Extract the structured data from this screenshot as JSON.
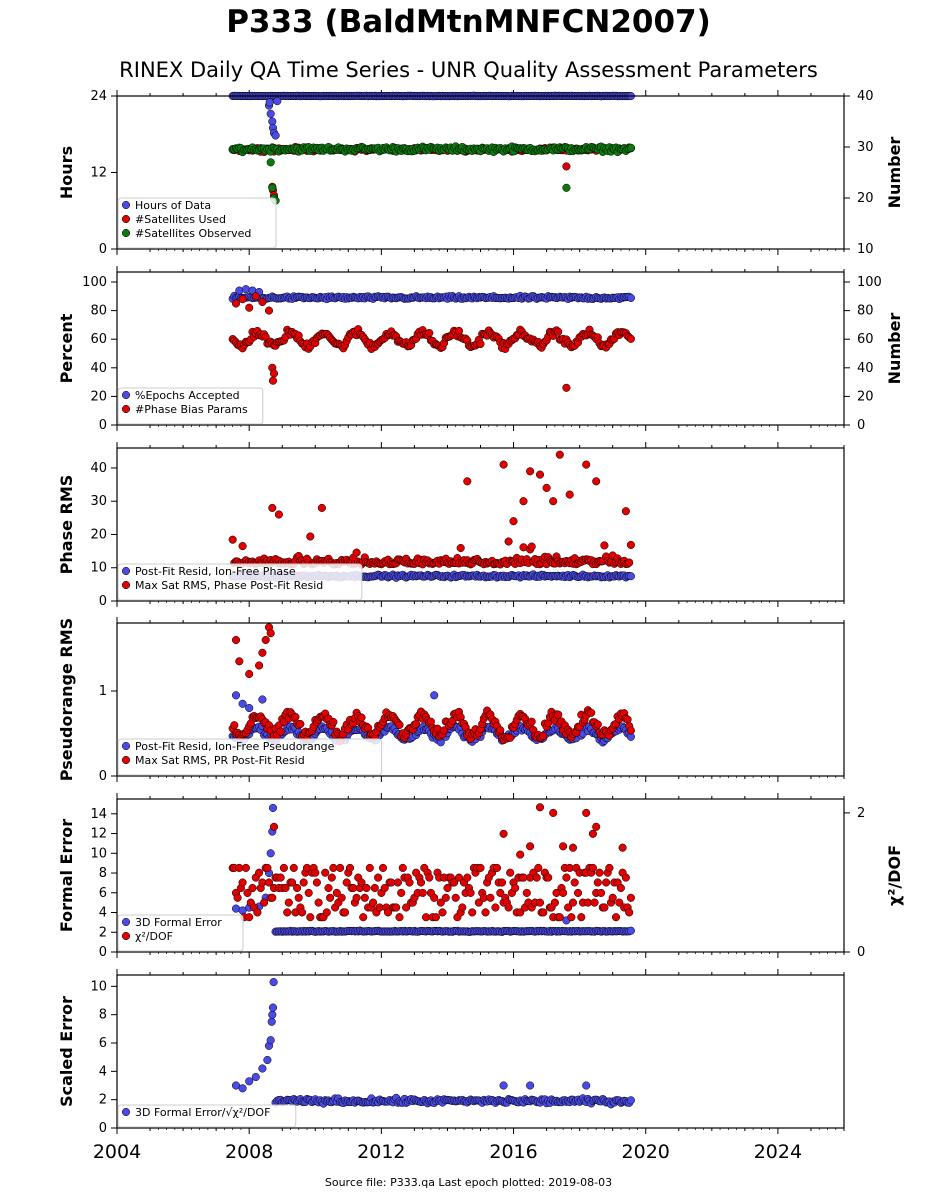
{
  "header": {
    "title": "P333 (BaldMtnMNFCN2007)",
    "subtitle": "RINEX Daily QA Time Series - UNR Quality Assessment Parameters"
  },
  "footer": {
    "text": "Source file: P333.qa Last epoch plotted: 2019-08-03"
  },
  "colors": {
    "blue": "#4a4ae6",
    "red": "#e00000",
    "green": "#0a7a0a",
    "edge": "#000000"
  },
  "chart_data": [
    {
      "type": "scatter",
      "ylabel": "Hours",
      "ylabel_right": "Number",
      "xlim": [
        2004,
        2026
      ],
      "ylim": [
        0,
        24
      ],
      "yticks": [
        0,
        12,
        24
      ],
      "ylim_right": [
        10,
        40
      ],
      "yticks_right": [
        10,
        20,
        30,
        40
      ],
      "legend": "lower-left",
      "series": [
        {
          "name": "Hours of Data",
          "color": "blue",
          "axis": "left",
          "mode": "const",
          "start": 2007.5,
          "end": 2019.55,
          "base": 24.0,
          "noise": 0.05,
          "extra": [
            [
              2008.6,
              22.5
            ],
            [
              2008.65,
              21.2
            ],
            [
              2008.7,
              20.0
            ],
            [
              2008.72,
              19.0
            ],
            [
              2008.75,
              18.2
            ],
            [
              2008.8,
              17.8
            ],
            [
              2008.62,
              23.0
            ],
            [
              2008.85,
              23.2
            ]
          ]
        },
        {
          "name": "#Satellites Used",
          "color": "red",
          "axis": "right",
          "mode": "const",
          "start": 2007.5,
          "end": 2019.55,
          "base": 29.5,
          "noise": 0.5,
          "extra": [
            [
              2008.7,
              22.2
            ],
            [
              2008.72,
              21.5
            ],
            [
              2008.75,
              20.5
            ],
            [
              2009.4,
              30.0
            ],
            [
              2017.6,
              26.2
            ]
          ]
        },
        {
          "name": "#Satellites Observed",
          "color": "green",
          "axis": "right",
          "mode": "const",
          "start": 2007.5,
          "end": 2019.55,
          "base": 29.6,
          "noise": 0.7,
          "extra": [
            [
              2008.65,
              27.0
            ],
            [
              2008.7,
              22.0
            ],
            [
              2008.75,
              20.0
            ],
            [
              2008.8,
              19.5
            ],
            [
              2017.6,
              22.0
            ]
          ]
        }
      ]
    },
    {
      "type": "scatter",
      "ylabel": "Percent",
      "ylabel_right": "Number",
      "xlim": [
        2004,
        2026
      ],
      "ylim": [
        0,
        107
      ],
      "yticks": [
        0,
        20,
        40,
        60,
        80,
        100
      ],
      "ylim_right": [
        0,
        107
      ],
      "yticks_right": [
        0,
        20,
        40,
        60,
        80,
        100
      ],
      "legend": "lower-left",
      "series": [
        {
          "name": "%Epochs Accepted",
          "color": "blue",
          "axis": "left",
          "mode": "const",
          "start": 2007.5,
          "end": 2019.55,
          "base": 89,
          "noise": 1.5,
          "extra": [
            [
              2007.7,
              94
            ],
            [
              2007.9,
              95
            ],
            [
              2008.1,
              94
            ],
            [
              2008.3,
              93
            ]
          ]
        },
        {
          "name": "#Phase Bias Params",
          "color": "red",
          "axis": "right",
          "mode": "seasonal",
          "start": 2007.5,
          "end": 2019.55,
          "base": 60,
          "noise": 4,
          "extra": [
            [
              2007.6,
              85
            ],
            [
              2007.8,
              88
            ],
            [
              2008.0,
              82
            ],
            [
              2008.2,
              90
            ],
            [
              2008.4,
              86
            ],
            [
              2008.6,
              80
            ],
            [
              2008.7,
              40
            ],
            [
              2008.75,
              36
            ],
            [
              2008.72,
              31
            ],
            [
              2017.6,
              26
            ]
          ]
        }
      ]
    },
    {
      "type": "scatter",
      "ylabel": "Phase RMS",
      "xlim": [
        2004,
        2026
      ],
      "ylim": [
        0,
        46
      ],
      "yticks": [
        0,
        10,
        20,
        30,
        40
      ],
      "legend": "lower-left",
      "series": [
        {
          "name": "Post-Fit Resid, Ion-Free Phase",
          "color": "blue",
          "axis": "left",
          "mode": "const",
          "start": 2007.5,
          "end": 2019.55,
          "base": 7.5,
          "noise": 0.6,
          "extra": []
        },
        {
          "name": "Max Sat RMS, Phase Post-Fit Resid",
          "color": "red",
          "axis": "left",
          "mode": "spiky",
          "start": 2007.5,
          "end": 2019.55,
          "base": 11,
          "noise": 3,
          "extra": [
            [
              2008.7,
              28
            ],
            [
              2008.9,
              26
            ],
            [
              2010.2,
              28
            ],
            [
              2014.6,
              36
            ],
            [
              2015.7,
              41
            ],
            [
              2016.0,
              24
            ],
            [
              2016.3,
              30
            ],
            [
              2016.5,
              39
            ],
            [
              2016.8,
              38
            ],
            [
              2017.0,
              34
            ],
            [
              2017.2,
              30
            ],
            [
              2017.4,
              44
            ],
            [
              2017.7,
              32
            ],
            [
              2018.2,
              41
            ],
            [
              2018.5,
              36
            ],
            [
              2019.4,
              27
            ]
          ]
        }
      ]
    },
    {
      "type": "scatter",
      "ylabel": "Pseudorange RMS",
      "xlim": [
        2004,
        2026
      ],
      "ylim": [
        0,
        1.8
      ],
      "yticks": [
        0,
        1
      ],
      "legend": "lower-left",
      "series": [
        {
          "name": "Post-Fit Resid, Ion-Free Pseudorange",
          "color": "blue",
          "axis": "left",
          "mode": "seasonal",
          "start": 2007.5,
          "end": 2019.55,
          "base": 0.5,
          "noise": 0.06,
          "extra": [
            [
              2007.6,
              0.95
            ],
            [
              2007.8,
              0.85
            ],
            [
              2008.0,
              0.8
            ],
            [
              2008.4,
              0.9
            ],
            [
              2013.6,
              0.95
            ]
          ]
        },
        {
          "name": "Max Sat RMS, PR Post-Fit Resid",
          "color": "red",
          "axis": "left",
          "mode": "seasonal",
          "start": 2007.5,
          "end": 2019.55,
          "base": 0.6,
          "noise": 0.1,
          "extra": [
            [
              2007.6,
              1.6
            ],
            [
              2007.7,
              1.35
            ],
            [
              2008.0,
              1.2
            ],
            [
              2008.3,
              1.3
            ],
            [
              2008.5,
              1.6
            ],
            [
              2008.6,
              1.75
            ],
            [
              2008.65,
              1.68
            ],
            [
              2008.4,
              1.45
            ]
          ]
        }
      ]
    },
    {
      "type": "scatter",
      "ylabel": "Formal Error",
      "ylabel_right": "χ²/DOF",
      "xlim": [
        2004,
        2026
      ],
      "ylim": [
        0,
        15.5
      ],
      "yticks": [
        0,
        2,
        4,
        6,
        8,
        10,
        12,
        14
      ],
      "ylim_right": [
        0,
        2.2
      ],
      "yticks_right": [
        0,
        2
      ],
      "legend": "lower-left",
      "series": [
        {
          "name": "3D Formal Error",
          "color": "blue",
          "axis": "left",
          "mode": "const",
          "start": 2008.8,
          "end": 2019.55,
          "base": 2.1,
          "noise": 0.08,
          "extra": [
            [
              2007.6,
              4.4
            ],
            [
              2007.8,
              4.2
            ],
            [
              2008.0,
              4.5
            ],
            [
              2008.3,
              4.6
            ],
            [
              2008.5,
              5.5
            ],
            [
              2008.6,
              8.0
            ],
            [
              2008.65,
              10.0
            ],
            [
              2008.7,
              12.2
            ],
            [
              2008.72,
              14.6
            ],
            [
              2017.6,
              3.2
            ]
          ]
        },
        {
          "name": "χ²/DOF",
          "color": "red",
          "axis": "right",
          "mode": "quant",
          "start": 2007.5,
          "end": 2019.55,
          "base": 0.78,
          "noise": 0.18,
          "extra": [
            [
              2008.75,
              1.8
            ],
            [
              2015.7,
              1.7
            ],
            [
              2016.2,
              1.4
            ],
            [
              2016.5,
              1.52
            ],
            [
              2016.8,
              2.08
            ],
            [
              2017.2,
              2.0
            ],
            [
              2017.5,
              1.52
            ],
            [
              2017.8,
              1.5
            ],
            [
              2018.2,
              2.0
            ],
            [
              2018.4,
              1.7
            ],
            [
              2018.5,
              1.8
            ],
            [
              2019.3,
              1.5
            ]
          ]
        }
      ]
    },
    {
      "type": "scatter",
      "ylabel": "Scaled Error",
      "xlim": [
        2004,
        2026
      ],
      "ylim": [
        0,
        10.8
      ],
      "yticks": [
        0,
        2,
        4,
        6,
        8,
        10
      ],
      "xticks": [
        2004,
        2008,
        2012,
        2016,
        2020,
        2024
      ],
      "legend": "lower-left",
      "series": [
        {
          "name": "3D Formal Error/√χ²/DOF",
          "color": "blue",
          "axis": "left",
          "mode": "const",
          "start": 2008.8,
          "end": 2019.55,
          "base": 1.9,
          "noise": 0.25,
          "extra": [
            [
              2007.6,
              3.0
            ],
            [
              2007.8,
              2.8
            ],
            [
              2008.0,
              3.3
            ],
            [
              2008.2,
              3.6
            ],
            [
              2008.4,
              4.2
            ],
            [
              2008.55,
              4.8
            ],
            [
              2008.6,
              5.8
            ],
            [
              2008.65,
              6.2
            ],
            [
              2008.68,
              7.5
            ],
            [
              2008.7,
              8.0
            ],
            [
              2008.72,
              8.5
            ],
            [
              2008.74,
              10.3
            ],
            [
              2015.7,
              3.0
            ],
            [
              2016.5,
              3.0
            ],
            [
              2018.2,
              3.0
            ]
          ]
        }
      ]
    }
  ]
}
